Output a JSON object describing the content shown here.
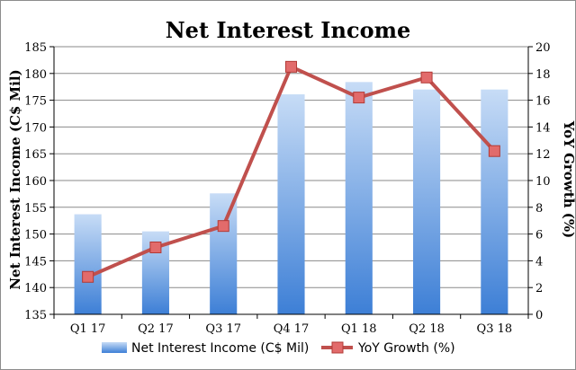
{
  "chart_data": {
    "type": "bar",
    "title": "Net Interest Income",
    "categories": [
      "Q1 17",
      "Q2 17",
      "Q3 17",
      "Q4 17",
      "Q1 18",
      "Q2 18",
      "Q3 18"
    ],
    "series": [
      {
        "name": "Net Interest Income (C$ Mil)",
        "type": "bar",
        "axis": "left",
        "values": [
          153.7,
          150.5,
          157.6,
          176.1,
          178.4,
          177.0,
          177.0
        ]
      },
      {
        "name": "YoY Growth (%)",
        "type": "line",
        "axis": "right",
        "values": [
          2.8,
          5.0,
          6.6,
          18.5,
          16.2,
          17.7,
          12.2
        ]
      }
    ],
    "ylabel": "Net Interest Income (C$ Mil)",
    "y2label": "YoY Growth (%)",
    "ylim": [
      135,
      185
    ],
    "y2lim": [
      0,
      20
    ],
    "yticks": [
      "135",
      "140",
      "145",
      "150",
      "155",
      "160",
      "165",
      "170",
      "175",
      "180",
      "185"
    ],
    "y2ticks": [
      "0",
      "2",
      "4",
      "6",
      "8",
      "10",
      "12",
      "14",
      "16",
      "18",
      "20"
    ],
    "grid": true,
    "legend": "bottom",
    "colors": {
      "bar": "#4f8bd8",
      "line": "#c0504d",
      "marker": "#e26b6b",
      "grid": "#8a8a8a"
    }
  }
}
